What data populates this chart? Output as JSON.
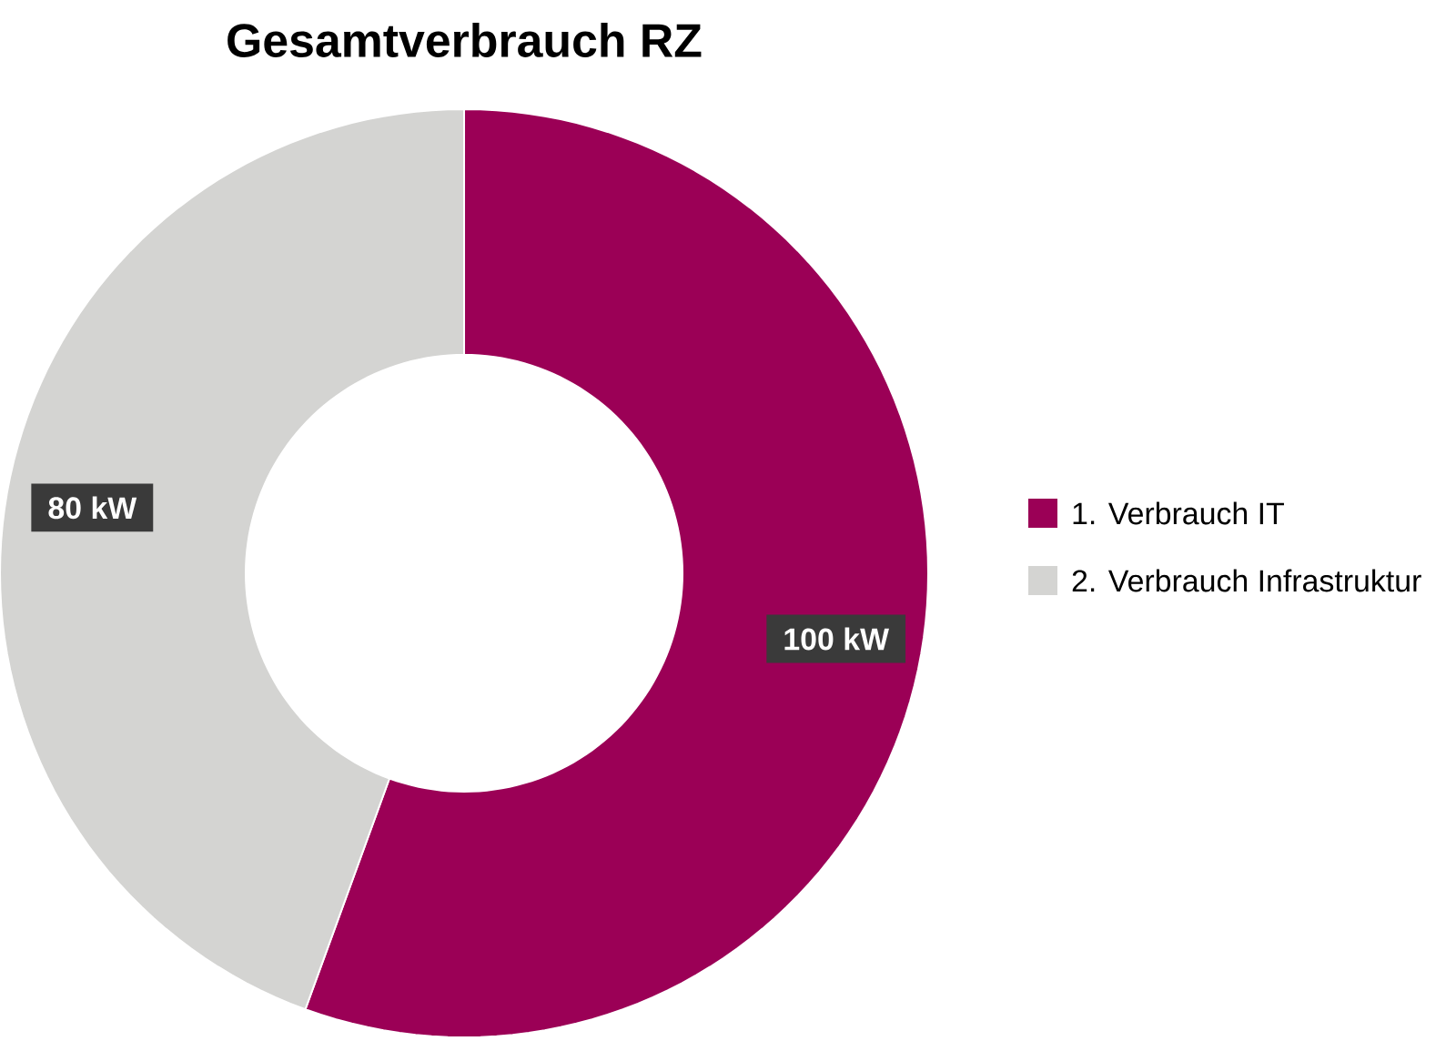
{
  "chart_data": {
    "type": "donut",
    "title": "Gesamtverbrauch RZ",
    "categories": [
      "1. Verbrauch IT",
      "2. Verbrauch Infrastruktur"
    ],
    "values": [
      100,
      80
    ],
    "value_labels": [
      "100 kW",
      "80 kW"
    ],
    "colors": [
      "#9b0056",
      "#d4d4d2"
    ],
    "legend": "right"
  }
}
